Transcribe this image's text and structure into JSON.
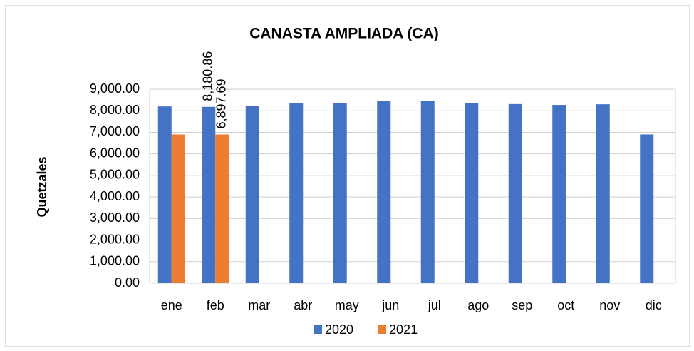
{
  "chart_data": {
    "type": "bar",
    "title": "CANASTA AMPLIADA (CA)",
    "y_label": "Quetzales",
    "categories": [
      "ene",
      "feb",
      "mar",
      "abr",
      "may",
      "jun",
      "jul",
      "ago",
      "sep",
      "oct",
      "nov",
      "dic"
    ],
    "series": [
      {
        "name": "2020",
        "color": "#4472c4",
        "values": [
          8200,
          8180.86,
          8240,
          8340,
          8370,
          8470,
          8470,
          8370,
          8310,
          8270,
          8300,
          6900
        ],
        "value_labels": [
          null,
          "8,180.86",
          null,
          null,
          null,
          null,
          null,
          null,
          null,
          null,
          null,
          null
        ]
      },
      {
        "name": "2021",
        "color": "#ed7d31",
        "values": [
          6900,
          6897.69,
          null,
          null,
          null,
          null,
          null,
          null,
          null,
          null,
          null,
          null
        ],
        "value_labels": [
          null,
          "6,897.69",
          null,
          null,
          null,
          null,
          null,
          null,
          null,
          null,
          null,
          null
        ]
      }
    ],
    "ylim": [
      0,
      9000
    ],
    "yticks": [
      {
        "value": 0,
        "label": "0.00"
      },
      {
        "value": 1000,
        "label": "1,000.00"
      },
      {
        "value": 2000,
        "label": "2,000.00"
      },
      {
        "value": 3000,
        "label": "3,000.00"
      },
      {
        "value": 4000,
        "label": "4,000.00"
      },
      {
        "value": 5000,
        "label": "5,000.00"
      },
      {
        "value": 6000,
        "label": "6,000.00"
      },
      {
        "value": 7000,
        "label": "7,000.00"
      },
      {
        "value": 8000,
        "label": "8,000.00"
      },
      {
        "value": 9000,
        "label": "9,000.00"
      }
    ],
    "grid": true,
    "legend": "bottom"
  }
}
